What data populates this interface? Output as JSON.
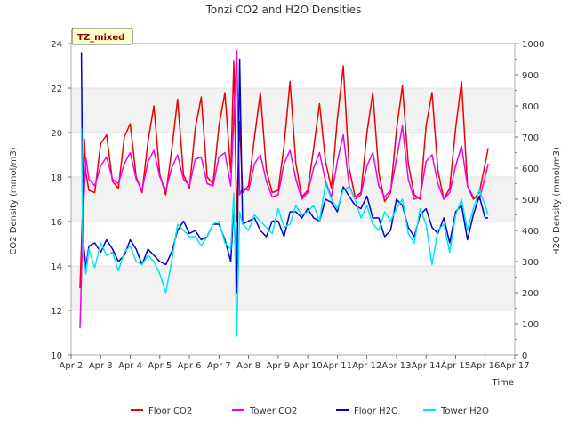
{
  "chart_data": {
    "type": "line",
    "title": "Tonzi CO2 and H2O Densities",
    "xlabel": "Time",
    "ylabel": "CO2 Density (mmol/m3)",
    "y2label": "H2O Density (mmol/m3)",
    "site_label": "TZ_mixed",
    "xlim": [
      2,
      17
    ],
    "ylim": [
      10,
      24
    ],
    "y2lim": [
      0,
      1000
    ],
    "xticks": [
      2,
      3,
      4,
      5,
      6,
      7,
      8,
      9,
      10,
      11,
      12,
      13,
      14,
      15,
      16,
      17
    ],
    "xtick_labels": [
      "Apr 2",
      "Apr 3",
      "Apr 4",
      "Apr 5",
      "Apr 6",
      "Apr 7",
      "Apr 8",
      "Apr 9",
      "Apr 10",
      "Apr 11",
      "Apr 12",
      "Apr 13",
      "Apr 14",
      "Apr 15",
      "Apr 16",
      "Apr 17"
    ],
    "yticks": [
      10,
      12,
      14,
      16,
      18,
      20,
      22,
      24
    ],
    "y2ticks": [
      0,
      100,
      200,
      300,
      400,
      500,
      600,
      700,
      800,
      900,
      1000
    ],
    "shaded_bands": [
      [
        12,
        14
      ],
      [
        16,
        18
      ],
      [
        20,
        22
      ]
    ],
    "series": [
      {
        "name": "Floor CO2",
        "axis": "left",
        "color": "#ee0000",
        "x": [
          2.3,
          2.4,
          2.45,
          2.5,
          2.6,
          2.8,
          3.0,
          3.2,
          3.4,
          3.6,
          3.8,
          4.0,
          4.2,
          4.4,
          4.6,
          4.8,
          5.0,
          5.2,
          5.4,
          5.6,
          5.8,
          6.0,
          6.2,
          6.4,
          6.6,
          6.8,
          7.0,
          7.2,
          7.4,
          7.5,
          7.6,
          7.7,
          7.8,
          8.0,
          8.2,
          8.4,
          8.6,
          8.8,
          9.0,
          9.2,
          9.4,
          9.6,
          9.8,
          10.0,
          10.2,
          10.4,
          10.6,
          10.8,
          11.0,
          11.2,
          11.4,
          11.6,
          11.8,
          12.0,
          12.2,
          12.4,
          12.6,
          12.8,
          13.0,
          13.2,
          13.4,
          13.6,
          13.8,
          14.0,
          14.2,
          14.4,
          14.6,
          14.8,
          15.0,
          15.2,
          15.4,
          15.6,
          15.8,
          16.0,
          16.1
        ],
        "values": [
          13.0,
          17.0,
          19.7,
          18.2,
          17.4,
          17.3,
          19.5,
          19.9,
          17.8,
          17.5,
          19.8,
          20.4,
          18.0,
          17.3,
          19.6,
          21.2,
          18.1,
          17.2,
          19.2,
          21.5,
          18.1,
          17.5,
          20.2,
          21.6,
          18.0,
          17.7,
          20.3,
          21.8,
          18.2,
          23.2,
          16.0,
          20.5,
          17.3,
          17.6,
          19.8,
          21.8,
          18.3,
          17.3,
          17.4,
          19.4,
          22.3,
          18.6,
          17.1,
          17.4,
          19.3,
          21.3,
          18.7,
          17.5,
          20.6,
          23.0,
          18.4,
          17.1,
          17.3,
          20.0,
          21.8,
          18.2,
          16.9,
          17.3,
          20.1,
          22.1,
          18.6,
          17.2,
          17.0,
          20.3,
          21.8,
          18.3,
          17.0,
          17.5,
          20.2,
          22.3,
          17.6,
          17.0,
          17.3,
          18.6,
          19.3
        ]
      },
      {
        "name": "Tower CO2",
        "axis": "left",
        "color": "#ee00ee",
        "x": [
          2.3,
          2.4,
          2.5,
          2.6,
          2.8,
          3.0,
          3.2,
          3.4,
          3.6,
          3.8,
          4.0,
          4.2,
          4.4,
          4.6,
          4.8,
          5.0,
          5.2,
          5.4,
          5.6,
          5.8,
          6.0,
          6.2,
          6.4,
          6.6,
          6.8,
          7.0,
          7.2,
          7.4,
          7.6,
          7.7,
          7.8,
          8.0,
          8.2,
          8.4,
          8.6,
          8.8,
          9.0,
          9.2,
          9.4,
          9.6,
          9.8,
          10.0,
          10.2,
          10.4,
          10.6,
          10.8,
          11.0,
          11.2,
          11.4,
          11.6,
          11.8,
          12.0,
          12.2,
          12.4,
          12.6,
          12.8,
          13.0,
          13.2,
          13.4,
          13.6,
          13.8,
          14.0,
          14.2,
          14.4,
          14.6,
          14.8,
          15.0,
          15.2,
          15.4,
          15.6,
          15.8,
          16.0,
          16.1
        ],
        "values": [
          11.2,
          16.0,
          18.9,
          17.9,
          17.6,
          18.5,
          18.9,
          17.9,
          17.7,
          18.6,
          19.1,
          17.9,
          17.4,
          18.7,
          19.2,
          18.0,
          17.4,
          18.4,
          19.0,
          17.9,
          17.6,
          18.8,
          18.9,
          17.7,
          17.6,
          18.9,
          19.1,
          17.6,
          23.7,
          17.2,
          17.5,
          17.4,
          18.6,
          19.0,
          17.8,
          17.1,
          17.2,
          18.6,
          19.2,
          17.9,
          17.0,
          17.3,
          18.4,
          19.1,
          17.8,
          17.1,
          18.7,
          19.9,
          17.6,
          17.0,
          17.2,
          18.5,
          19.1,
          17.6,
          17.1,
          17.4,
          18.8,
          20.3,
          17.9,
          17.0,
          17.1,
          18.7,
          19.0,
          17.7,
          17.0,
          17.3,
          18.5,
          19.4,
          17.6,
          17.1,
          17.0,
          18.0,
          18.6
        ]
      },
      {
        "name": "Floor H2O",
        "axis": "right",
        "color": "#0000cc",
        "x": [
          2.35,
          2.4,
          2.5,
          2.6,
          2.8,
          3.0,
          3.2,
          3.4,
          3.6,
          3.8,
          4.0,
          4.2,
          4.4,
          4.6,
          4.8,
          5.0,
          5.2,
          5.4,
          5.6,
          5.8,
          6.0,
          6.2,
          6.4,
          6.6,
          6.8,
          7.0,
          7.2,
          7.4,
          7.5,
          7.6,
          7.7,
          7.8,
          8.0,
          8.2,
          8.4,
          8.6,
          8.8,
          9.0,
          9.2,
          9.4,
          9.6,
          9.8,
          10.0,
          10.2,
          10.4,
          10.6,
          10.8,
          11.0,
          11.2,
          11.4,
          11.6,
          11.8,
          12.0,
          12.2,
          12.4,
          12.6,
          12.8,
          13.0,
          13.2,
          13.4,
          13.6,
          13.8,
          14.0,
          14.2,
          14.4,
          14.6,
          14.8,
          15.0,
          15.2,
          15.4,
          15.6,
          15.8,
          16.0,
          16.1
        ],
        "values": [
          970,
          380,
          280,
          350,
          360,
          330,
          370,
          340,
          300,
          320,
          370,
          340,
          290,
          340,
          320,
          300,
          290,
          330,
          400,
          430,
          390,
          400,
          370,
          380,
          420,
          420,
          370,
          300,
          480,
          200,
          950,
          420,
          430,
          440,
          400,
          380,
          430,
          430,
          380,
          460,
          460,
          440,
          470,
          440,
          430,
          500,
          490,
          460,
          540,
          510,
          480,
          470,
          510,
          440,
          440,
          380,
          400,
          500,
          480,
          410,
          380,
          450,
          470,
          410,
          390,
          440,
          360,
          460,
          480,
          370,
          450,
          510,
          440,
          440
        ]
      },
      {
        "name": "Tower H2O",
        "axis": "right",
        "color": "#00e5ee",
        "x": [
          2.35,
          2.4,
          2.5,
          2.6,
          2.8,
          3.0,
          3.2,
          3.4,
          3.6,
          3.8,
          4.0,
          4.2,
          4.4,
          4.6,
          4.8,
          5.0,
          5.2,
          5.4,
          5.6,
          5.8,
          6.0,
          6.2,
          6.4,
          6.6,
          6.8,
          7.0,
          7.2,
          7.4,
          7.5,
          7.6,
          7.7,
          7.8,
          8.0,
          8.2,
          8.4,
          8.6,
          8.8,
          9.0,
          9.2,
          9.4,
          9.6,
          9.8,
          10.0,
          10.2,
          10.4,
          10.6,
          10.8,
          11.0,
          11.2,
          11.4,
          11.6,
          11.8,
          12.0,
          12.2,
          12.4,
          12.6,
          12.8,
          13.0,
          13.2,
          13.4,
          13.6,
          13.8,
          14.0,
          14.2,
          14.4,
          14.6,
          14.8,
          15.0,
          15.2,
          15.4,
          15.6,
          15.8,
          16.0,
          16.1
        ],
        "values": [
          730,
          330,
          260,
          340,
          280,
          360,
          320,
          330,
          270,
          330,
          350,
          300,
          290,
          320,
          300,
          260,
          200,
          300,
          420,
          400,
          380,
          380,
          350,
          380,
          420,
          430,
          360,
          340,
          520,
          60,
          460,
          420,
          400,
          450,
          430,
          410,
          390,
          470,
          410,
          420,
          480,
          450,
          460,
          480,
          430,
          550,
          500,
          470,
          530,
          540,
          500,
          440,
          480,
          420,
          400,
          460,
          430,
          470,
          500,
          390,
          360,
          470,
          420,
          290,
          400,
          420,
          330,
          450,
          500,
          400,
          470,
          530,
          480,
          450
        ]
      }
    ]
  }
}
